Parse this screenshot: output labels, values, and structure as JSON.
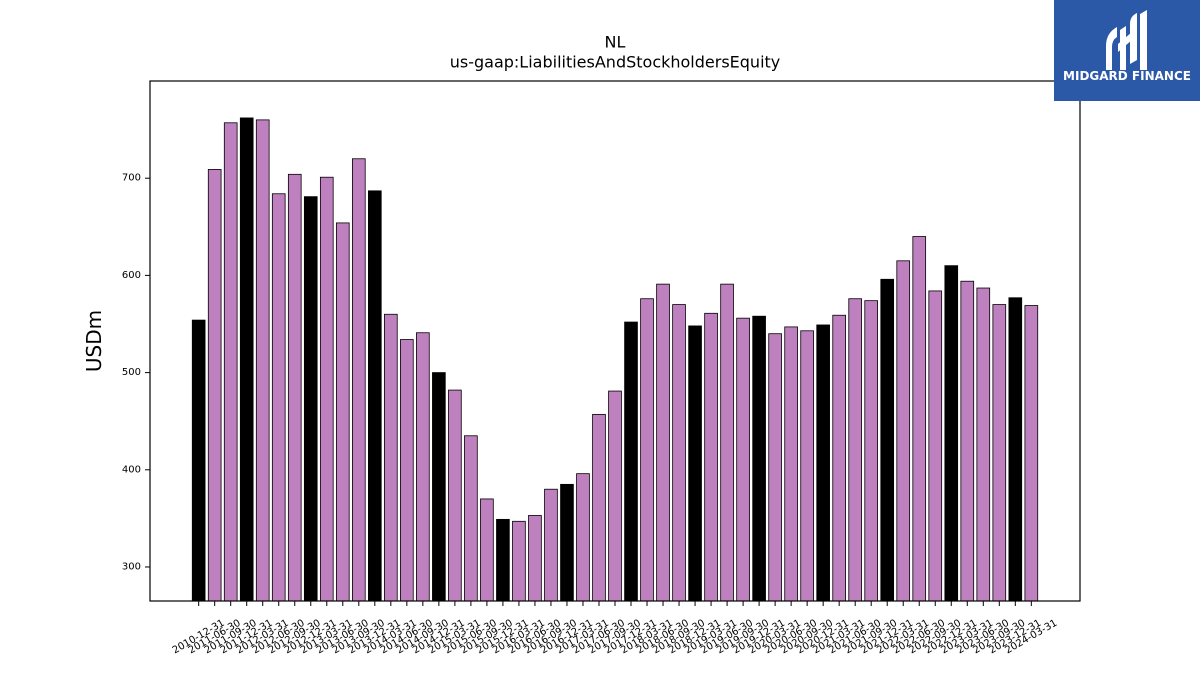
{
  "chart_data": {
    "type": "bar",
    "title": "NL",
    "subtitle": "us-gaap:LiabilitiesAndStockholdersEquity",
    "ylabel": "USDm",
    "ylim": [
      265,
      800
    ],
    "yticks": [
      300,
      400,
      500,
      600,
      700
    ],
    "grid": false,
    "bar_colors": {
      "fiscal_year_end": "#000000",
      "interim": "#bf80bf"
    },
    "categories": [
      "2010-12-31",
      "2011-06-30",
      "2011-09-30",
      "2011-12-31",
      "2012-03-31",
      "2012-06-30",
      "2012-09-30",
      "2012-12-31",
      "2013-03-31",
      "2013-06-30",
      "2013-09-30",
      "2013-12-31",
      "2014-03-31",
      "2014-06-30",
      "2014-09-30",
      "2014-12-31",
      "2015-03-31",
      "2015-06-30",
      "2015-09-30",
      "2015-12-31",
      "2016-03-31",
      "2016-06-30",
      "2016-09-30",
      "2016-12-31",
      "2017-03-31",
      "2017-06-30",
      "2017-09-30",
      "2017-12-31",
      "2018-03-31",
      "2018-06-30",
      "2018-09-30",
      "2018-12-31",
      "2019-03-31",
      "2019-06-30",
      "2019-09-30",
      "2019-12-31",
      "2020-03-31",
      "2020-06-30",
      "2020-09-30",
      "2020-12-31",
      "2021-03-31",
      "2021-06-30",
      "2021-09-30",
      "2021-12-31",
      "2022-03-31",
      "2022-06-30",
      "2022-09-30",
      "2022-12-31",
      "2023-03-31",
      "2023-06-30",
      "2023-09-30",
      "2023-12-31",
      "2024-03-31"
    ],
    "values": [
      554,
      709,
      757,
      762,
      760,
      684,
      704,
      681,
      701,
      654,
      720,
      687,
      560,
      534,
      541,
      500,
      482,
      435,
      370,
      349,
      347,
      353,
      380,
      385,
      396,
      457,
      481,
      552,
      576,
      591,
      570,
      548,
      561,
      591,
      556,
      558,
      540,
      547,
      543,
      549,
      559,
      576,
      574,
      596,
      615,
      640,
      584,
      610,
      594,
      587,
      570,
      577,
      569
    ]
  },
  "logo": {
    "text": "MIDGARD FINANCE",
    "background": "#2b59a7",
    "foreground": "#ffffff"
  }
}
